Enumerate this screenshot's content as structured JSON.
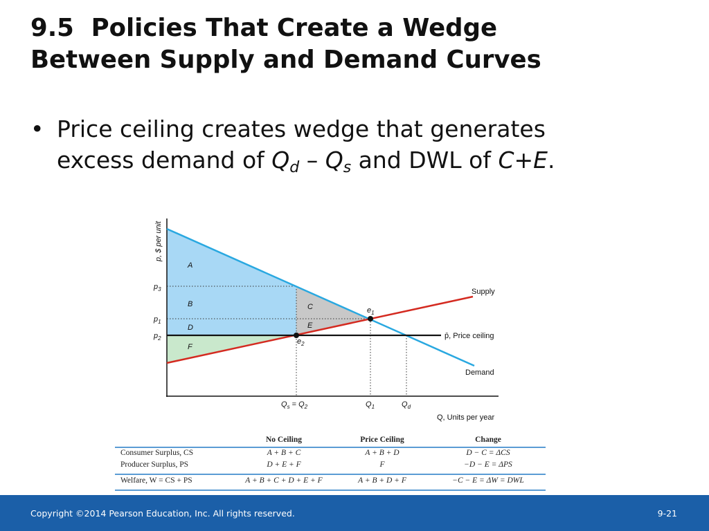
{
  "slide": {
    "title_line1": "9.5  Policies That Create a Wedge",
    "title_line2": "Between Supply and Demand Curves",
    "bullet_symbol": "•",
    "bullet_line1": "Price ceiling creates wedge that generates",
    "bullet_line2_prefix": "excess demand of ",
    "bullet_qd": "Q",
    "bullet_qd_sub": "d",
    "bullet_minus": " – ",
    "bullet_qs": "Q",
    "bullet_qs_sub": "s",
    "bullet_line2_mid": " and DWL of ",
    "bullet_ce": "C+E",
    "bullet_line2_end": "."
  },
  "graph": {
    "y_axis_label": "p, $ per unit",
    "x_axis_label": "Q, Units per year",
    "price_labels": [
      "p3",
      "p1",
      "p2"
    ],
    "quantity_labels": [
      "Qs = Q2",
      "Q1",
      "Qd"
    ],
    "curve_labels": {
      "supply": "Supply",
      "demand": "Demand",
      "ceiling": "p̄, Price ceiling"
    },
    "region_labels": [
      "A",
      "B",
      "C",
      "D",
      "E",
      "F"
    ],
    "point_labels": [
      "e1",
      "e2"
    ],
    "colors": {
      "demand": "#29a8e0",
      "supply": "#d42a20",
      "ceiling": "#111111",
      "consumer_surplus": "#a8d8f5",
      "producer_surplus": "#c9e8cc",
      "dwl": "#c8c8c8"
    }
  },
  "table": {
    "headers": [
      "",
      "No Ceiling",
      "Price Ceiling",
      "Change"
    ],
    "rows": [
      [
        "Consumer Surplus, CS",
        "A + B + C",
        "A + B + D",
        "D − C = ΔCS"
      ],
      [
        "Producer Surplus, PS",
        "D + E + F",
        "F",
        "−D − E = ΔPS"
      ],
      [
        "Welfare, W = CS + PS",
        "A + B + C + D + E + F",
        "A + B + D + F",
        "−C − E = ΔW = DWL"
      ]
    ]
  },
  "footer": {
    "copyright": "Copyright ©2014 Pearson Education, Inc. All rights reserved.",
    "page": "9-21"
  }
}
